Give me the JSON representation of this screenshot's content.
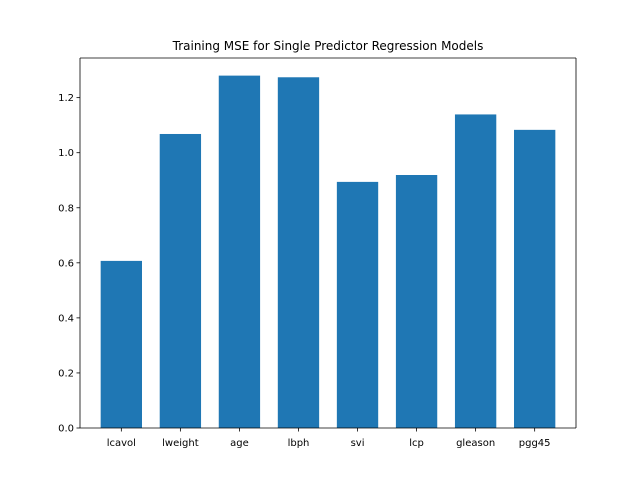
{
  "chart_data": {
    "type": "bar",
    "title": "Training MSE for Single Predictor Regression Models",
    "xlabel": "",
    "ylabel": "",
    "categories": [
      "lcavol",
      "lweight",
      "age",
      "lbph",
      "svi",
      "lcp",
      "gleason",
      "pgg45"
    ],
    "values": [
      0.607,
      1.068,
      1.28,
      1.274,
      0.894,
      0.919,
      1.139,
      1.083
    ],
    "ylim": [
      0,
      1.344
    ],
    "yticks": [
      0.0,
      0.2,
      0.4,
      0.6,
      0.8,
      1.0,
      1.2
    ],
    "ytick_labels": [
      "0.0",
      "0.2",
      "0.4",
      "0.6",
      "0.8",
      "1.0",
      "1.2"
    ],
    "grid": false,
    "legend": "none",
    "bar_color": "#1f77b4"
  }
}
